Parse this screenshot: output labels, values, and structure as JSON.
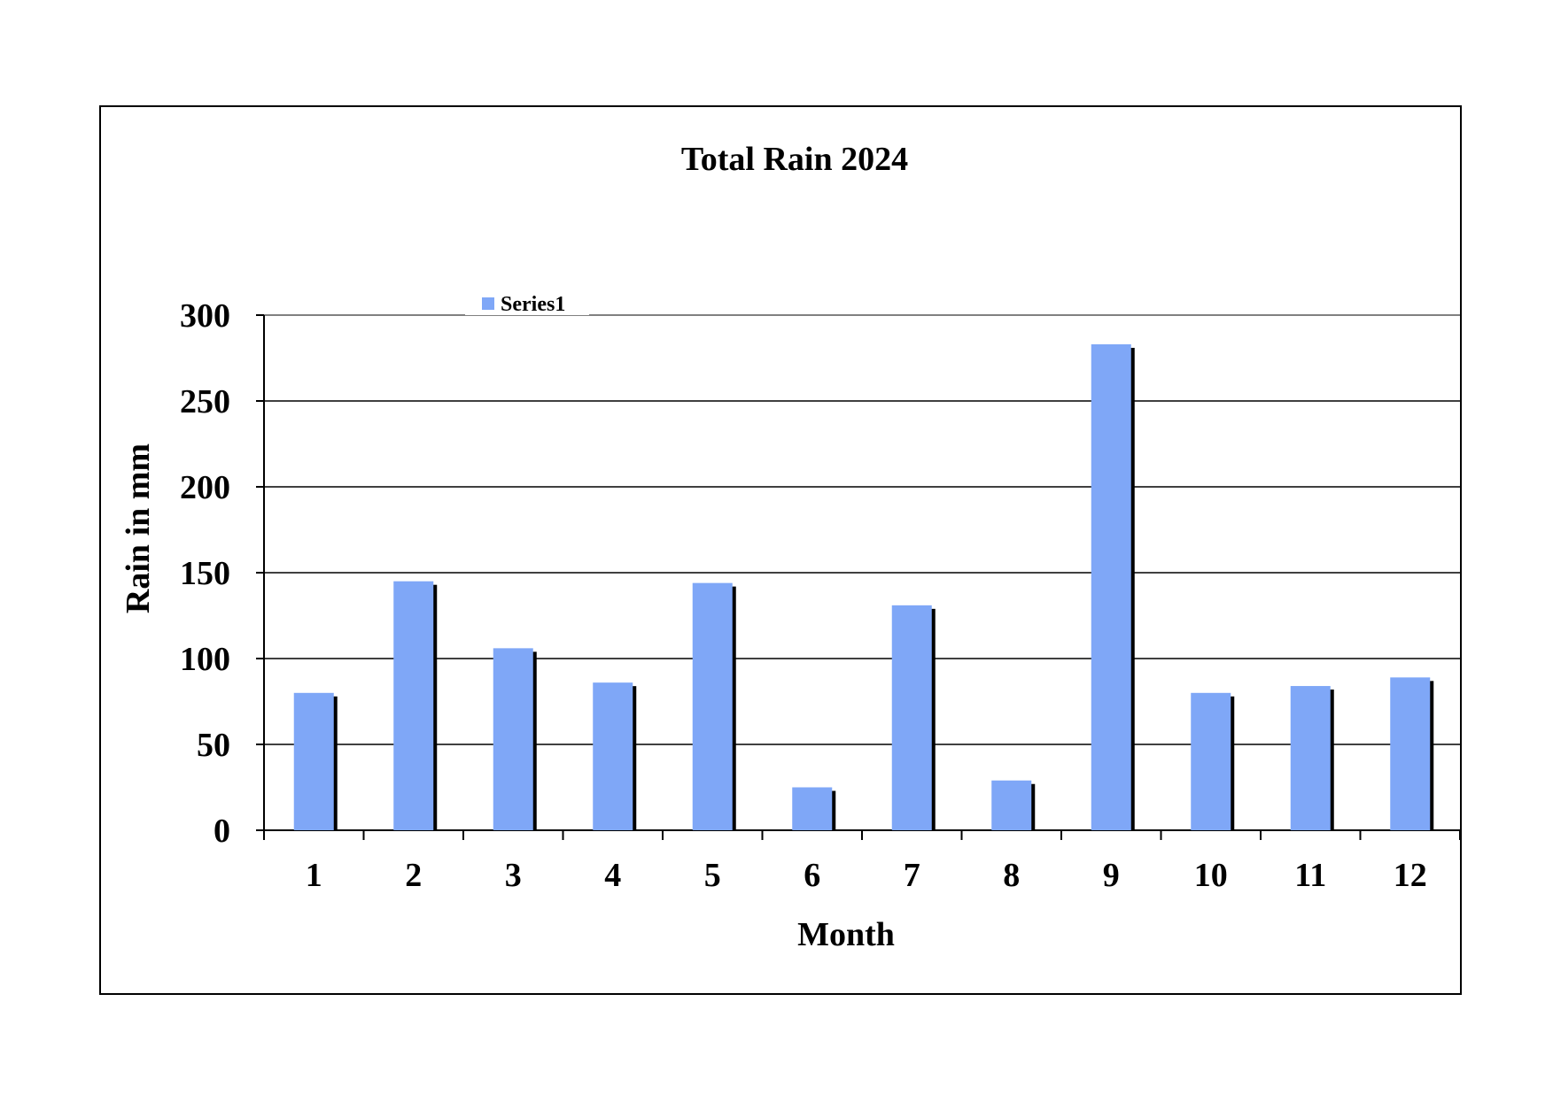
{
  "chart_data": {
    "type": "bar",
    "title": "Total Rain 2024",
    "xlabel": "Month",
    "ylabel": "Rain in mm",
    "categories": [
      "1",
      "2",
      "3",
      "4",
      "5",
      "6",
      "7",
      "8",
      "9",
      "10",
      "11",
      "12"
    ],
    "series": [
      {
        "name": "Series1",
        "values": [
          80,
          145,
          106,
          86,
          144,
          25,
          131,
          29,
          283,
          80,
          84,
          89
        ]
      }
    ],
    "ylim": [
      0,
      300
    ],
    "yticks": [
      0,
      50,
      100,
      150,
      200,
      250,
      300
    ],
    "grid": true,
    "legend_position": "top",
    "colors": {
      "bar": "#7fa7f7",
      "bar_shadow": "#000000",
      "gridline": "#000000",
      "top_gridline": "#808080",
      "frame": "#000000"
    }
  }
}
